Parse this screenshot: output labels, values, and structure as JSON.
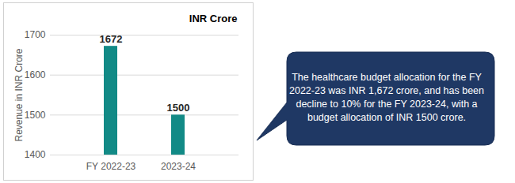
{
  "chart_data": {
    "type": "bar",
    "title": "INR Crore",
    "y_label": "Revenue in INR Crore",
    "categories": [
      "FY 2022-23",
      "2023-24"
    ],
    "values": [
      1672,
      1500
    ],
    "color": "#128a86",
    "ylim": [
      1400,
      1700
    ],
    "yticks": [
      1400,
      1500,
      1600,
      1700
    ],
    "grid": true,
    "data_labels": true,
    "annotation": "The healthcare budget allocation for the FY 2022-23 was INR 1,672 crore, and has been decline to 10% for the FY 2023-24, with  a budget allocation of INR 1500 crore."
  }
}
